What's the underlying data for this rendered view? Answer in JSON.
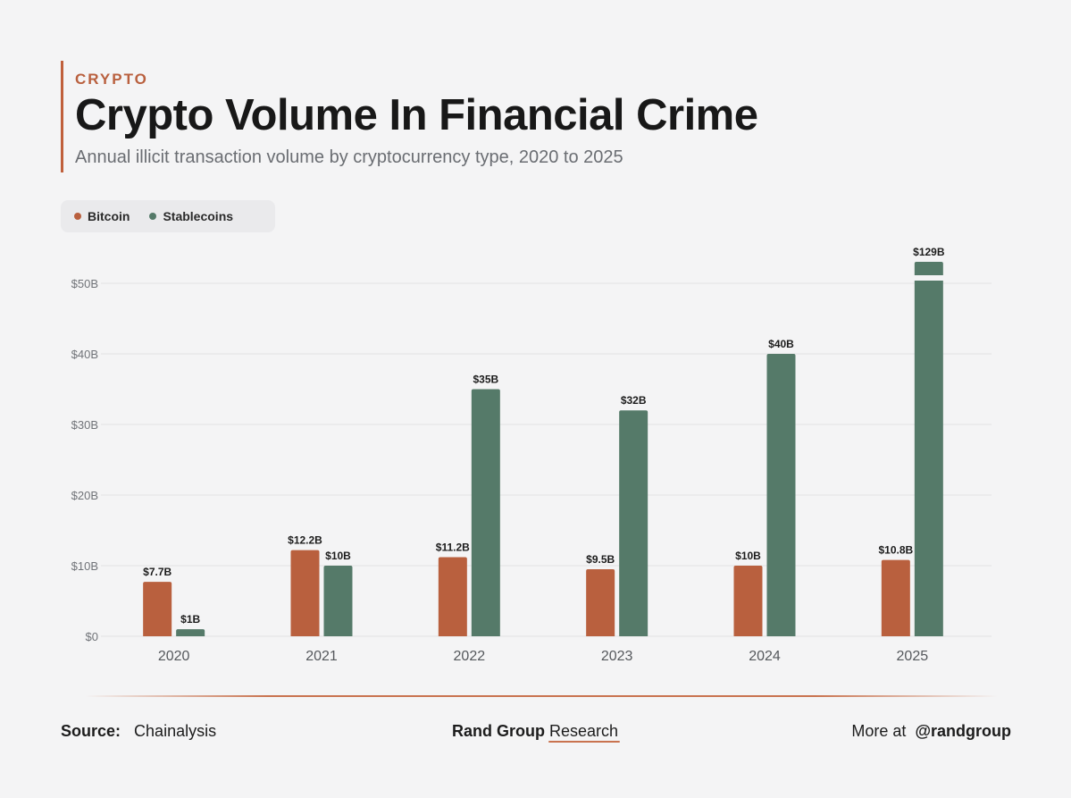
{
  "header": {
    "kicker": "CRYPTO",
    "title": "Crypto Volume In Financial Crime",
    "subtitle": "Annual illicit transaction volume by cryptocurrency type, 2020 to 2025"
  },
  "legend": {
    "items": [
      {
        "label": "Bitcoin",
        "color": "#b9603e"
      },
      {
        "label": "Stablecoins",
        "color": "#557a69"
      }
    ]
  },
  "footer": {
    "source_label": "Source:",
    "source_value": "Chainalysis",
    "brand_bold": "Rand Group",
    "brand_rest": "Research",
    "more_label": "More at",
    "handle": "@randgroup"
  },
  "chart_data": {
    "type": "bar",
    "title": "Crypto Volume In Financial Crime",
    "subtitle": "Annual illicit transaction volume by cryptocurrency type, 2020 to 2025",
    "categories": [
      "2020",
      "2021",
      "2022",
      "2023",
      "2024",
      "2025"
    ],
    "series": [
      {
        "name": "Bitcoin",
        "color": "#b9603e",
        "values": [
          7.7,
          12.2,
          11.2,
          9.5,
          10,
          10.8
        ],
        "labels": [
          "$7.7B",
          "$12.2B",
          "$11.2B",
          "$9.5B",
          "$10B",
          "$10.8B"
        ]
      },
      {
        "name": "Stablecoins",
        "color": "#557a69",
        "values": [
          1,
          10,
          35,
          32,
          40,
          129
        ],
        "labels": [
          "$1B",
          "$10B",
          "$35B",
          "$32B",
          "$40B",
          "$129B"
        ]
      }
    ],
    "ylim": [
      0,
      50
    ],
    "yticks": [
      0,
      10,
      20,
      30,
      40,
      50
    ],
    "ytick_labels": [
      "$0",
      "$10B",
      "$20B",
      "$30B",
      "$40B",
      "$50B"
    ],
    "axis_break": true,
    "grid": true,
    "legend_position": "top-left"
  }
}
